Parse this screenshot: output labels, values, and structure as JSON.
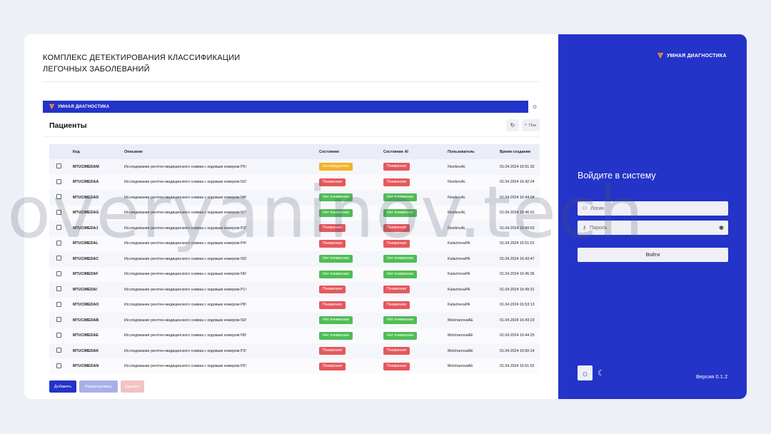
{
  "colors": {
    "accent": "#2433c8",
    "danger": "#e5585d",
    "success": "#4fbd55",
    "warning": "#f2b128",
    "background": "#eef0f8"
  },
  "heading": {
    "line1": "КОМПЛЕКС ДЕТЕКТИРОВАНИЯ КЛАССИФИКАЦИИ",
    "line2": "ЛЕГОЧНЫХ ЗАБОЛЕВАНИЙ"
  },
  "app": {
    "brand": "УМНАЯ ДИАГНОСТИКА",
    "page_title": "Пациенты",
    "search_placeholder": "Пои",
    "columns": {
      "code": "Код",
      "description": "Описание",
      "status": "Состояние",
      "status_ai": "Состояние AI",
      "user": "Пользователь",
      "created": "Время создания"
    },
    "rows": [
      {
        "code": "MTUCIMEDAM",
        "description": "Исследование рентген-медицинского снимка с кодовым номером P5!",
        "status": "Не определено",
        "status_kind": "yellow",
        "ai": "Пневмония",
        "ai_kind": "red",
        "user": "NovikovAL",
        "created": "01.04.2024 16:51:32"
      },
      {
        "code": "MTUCIMEDAA",
        "description": "Исследование рентген-медицинского снимка с кодовым номером N1!",
        "status": "Пневмония",
        "status_kind": "red",
        "ai": "Пневмония",
        "ai_kind": "red",
        "user": "NovikovAL",
        "created": "01.04.2024 16:42:24"
      },
      {
        "code": "MTUCIMEDAD",
        "description": "Исследование рентген-медицинского снимка с кодовым номером N4!",
        "status": "Нет пневмонии",
        "status_kind": "green",
        "ai": "Нет пневмонии",
        "ai_kind": "green",
        "user": "NovikovAL",
        "created": "01.04.2024 16:44:04"
      },
      {
        "code": "MTUCIMEDAG",
        "description": "Исследование рентген-медицинского снимка с кодовым номером N7!",
        "status": "Нет пневмонии",
        "status_kind": "green",
        "ai": "Нет пневмонии",
        "ai_kind": "green",
        "user": "NovikovAL",
        "created": "01.04.2024 16:46:01"
      },
      {
        "code": "MTUCIMEDAJ",
        "description": "Исследование рентген-медицинского снимка с кодовым номером P2!",
        "status": "Пневмония",
        "status_kind": "red",
        "ai": "Пневмония",
        "ai_kind": "red",
        "user": "NovikovAL",
        "created": "01.04.2024 16:49:53"
      },
      {
        "code": "MTUCIMEDAL",
        "description": "Исследование рентген-медицинского снимка с кодовым номером P4!",
        "status": "Пневмония",
        "status_kind": "red",
        "ai": "Пневмония",
        "ai_kind": "red",
        "user": "KalachevaPA",
        "created": "01.04.2024 16:51:01"
      },
      {
        "code": "MTUCIMEDAC",
        "description": "Исследование рентген-медицинского снимка с кодовым номером N3!",
        "status": "Нет пневмонии",
        "status_kind": "green",
        "ai": "Нет пневмонии",
        "ai_kind": "green",
        "user": "KalachevaPA",
        "created": "01.04.2024 16:43:47"
      },
      {
        "code": "MTUCIMEDAF",
        "description": "Исследование рентген-медицинского снимка с кодовым номером N6!",
        "status": "Нет пневмонии",
        "status_kind": "green",
        "ai": "Нет пневмонии",
        "ai_kind": "green",
        "user": "KalachevaPA",
        "created": "01.04.2024 16:45:36"
      },
      {
        "code": "MTUCIMEDAI",
        "description": "Исследование рентген-медицинского снимка с кодовым номером P1!",
        "status": "Пневмония",
        "status_kind": "red",
        "ai": "Пневмония",
        "ai_kind": "red",
        "user": "KalachevaPA",
        "created": "01.04.2024 16:49:31"
      },
      {
        "code": "MTUCIMEDAO",
        "description": "Исследование рентген-медицинского снимка с кодовым номером P8!",
        "status": "Пневмония",
        "status_kind": "red",
        "ai": "Пневмония",
        "ai_kind": "red",
        "user": "KalachevaPA",
        "created": "01.04.2024 16:53:13"
      },
      {
        "code": "MTUCIMEDAB",
        "description": "Исследование рентген-медицинского снимка с кодовым номером N2!",
        "status": "Нет пневмонии",
        "status_kind": "green",
        "ai": "Нет пневмонии",
        "ai_kind": "green",
        "user": "MolchanovaAE",
        "created": "01.04.2024 16:43:23"
      },
      {
        "code": "MTUCIMEDAE",
        "description": "Исследование рентген-медицинского снимка с кодовым номером N5!",
        "status": "Нет пневмонии",
        "status_kind": "green",
        "ai": "Нет пневмонии",
        "ai_kind": "green",
        "user": "MolchanovaAE",
        "created": "01.04.2024 16:44:25"
      },
      {
        "code": "MTUCIMEDAK",
        "description": "Исследование рентген-медицинского снимка с кодовым номером P3!",
        "status": "Пневмония",
        "status_kind": "red",
        "ai": "Пневмония",
        "ai_kind": "red",
        "user": "MolchanovaAE",
        "created": "01.04.2024 16:50:14"
      },
      {
        "code": "MTUCIMEDAN",
        "description": "Исследование рентген-медицинского снимка с кодовым номером P6!",
        "status": "Пневмония",
        "status_kind": "red",
        "ai": "Пневмония",
        "ai_kind": "red",
        "user": "MolchanovaAE",
        "created": "01.04.2024 16:51:52"
      }
    ],
    "actions": {
      "add": "Добавить",
      "edit": "Редактировать",
      "delete": "Удалить"
    }
  },
  "login": {
    "brand": "УМНАЯ ДИАГНОСТИКА",
    "title": "Войдите в систему",
    "login_placeholder": "Логин",
    "password_placeholder": "Пароль",
    "submit": "Войти",
    "version": "Версия 0.1.2"
  },
  "watermark": "overyaninov.tech"
}
